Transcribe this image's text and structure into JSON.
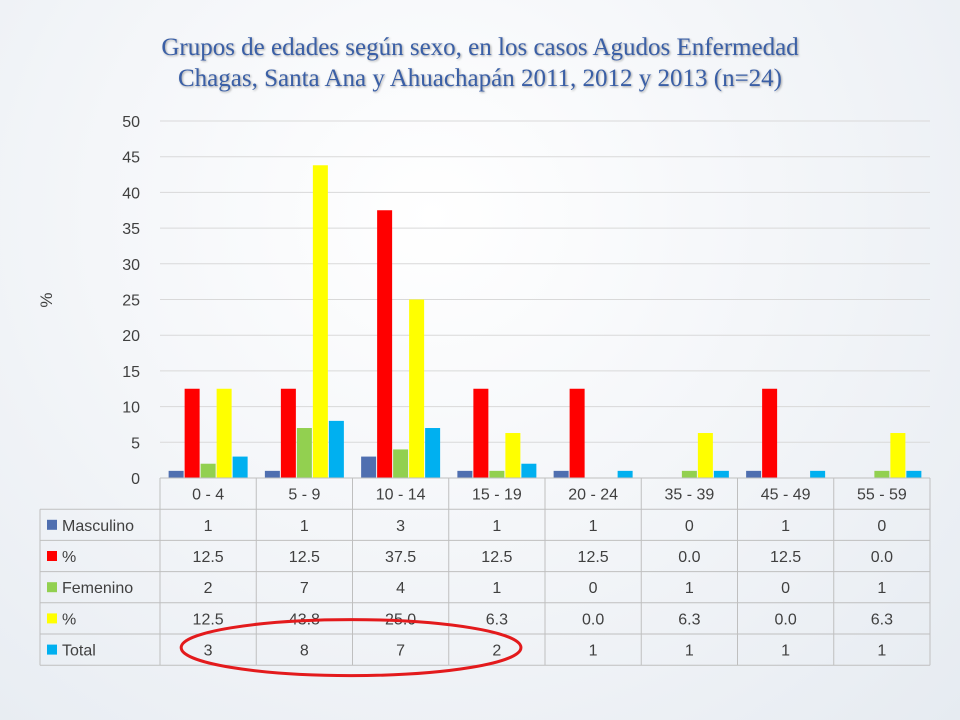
{
  "title_lines": [
    "Grupos de edades según sexo, en los casos Agudos Enfermedad",
    "Chagas, Santa Ana y Ahuachapán 2011, 2012 y 2013 (n=24)"
  ],
  "chart_data": {
    "type": "bar",
    "title": "Grupos de edades según sexo, en los casos Agudos Enfermedad Chagas, Santa Ana y Ahuachapán 2011, 2012 y 2013 (n=24)",
    "ylabel": "%",
    "ylim": [
      0,
      50
    ],
    "yticks": [
      0,
      5,
      10,
      15,
      20,
      25,
      30,
      35,
      40,
      45,
      50
    ],
    "grid": true,
    "legend": "data-table",
    "categories": [
      "0 - 4",
      "5 - 9",
      "10 - 14",
      "15 - 19",
      "20 - 24",
      "35 - 39",
      "45 - 49",
      "55 - 59"
    ],
    "series": [
      {
        "name": "Masculino",
        "color": "#4f6fb0",
        "values": [
          1,
          1,
          3,
          1,
          1,
          0,
          1,
          0
        ],
        "labels": [
          "1",
          "1",
          "3",
          "1",
          "1",
          "0",
          "1",
          "0"
        ]
      },
      {
        "name": "%",
        "color": "#ff0000",
        "values": [
          12.5,
          12.5,
          37.5,
          12.5,
          12.5,
          0.0,
          12.5,
          0.0
        ],
        "labels": [
          "12.5",
          "12.5",
          "37.5",
          "12.5",
          "12.5",
          "0.0",
          "12.5",
          "0.0"
        ]
      },
      {
        "name": "Femenino",
        "color": "#92d050",
        "values": [
          2,
          7,
          4,
          1,
          0,
          1,
          0,
          1
        ],
        "labels": [
          "2",
          "7",
          "4",
          "1",
          "0",
          "1",
          "0",
          "1"
        ]
      },
      {
        "name": "%",
        "color": "#ffff00",
        "values": [
          12.5,
          43.8,
          25.0,
          6.3,
          0.0,
          6.3,
          0.0,
          6.3
        ],
        "labels": [
          "12.5",
          "43.8",
          "25.0",
          "6.3",
          "0.0",
          "6.3",
          "0.0",
          "6.3"
        ]
      },
      {
        "name": "Total",
        "color": "#00b0f0",
        "values": [
          3,
          8,
          7,
          2,
          1,
          1,
          1,
          1
        ],
        "labels": [
          "3",
          "8",
          "7",
          "2",
          "1",
          "1",
          "1",
          "1"
        ]
      }
    ],
    "annotation": {
      "shape": "ellipse",
      "color": "#e31a1c",
      "encloses": "Total row, first four age groups"
    }
  }
}
